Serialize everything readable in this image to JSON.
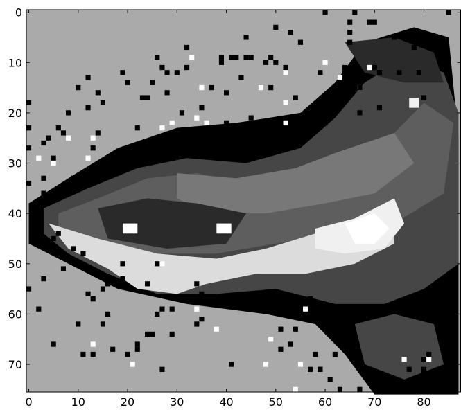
{
  "chart_data": {
    "type": "heatmap",
    "title": "",
    "xlabel": "",
    "ylabel": "",
    "colormap": "gray",
    "levels": [
      "#000000",
      "#2a2a2a",
      "#464646",
      "#5e5e5e",
      "#787878",
      "#aaaaaa",
      "#dcdcdc",
      "#f0f0f0",
      "#ffffff"
    ],
    "background_level": "#aaaaaa",
    "xlim": [
      -0.5,
      87.5
    ],
    "ylim": [
      75.5,
      -0.5
    ],
    "x_ticks": [
      0,
      10,
      20,
      30,
      40,
      50,
      60,
      70,
      80
    ],
    "y_ticks": [
      0,
      10,
      20,
      30,
      40,
      50,
      60,
      70
    ],
    "x_tick_labels": [
      "0",
      "10",
      "20",
      "30",
      "40",
      "50",
      "60",
      "70",
      "80"
    ],
    "y_tick_labels": [
      "0",
      "10",
      "20",
      "30",
      "40",
      "50",
      "60",
      "70"
    ],
    "grid": false,
    "image_columns": 88,
    "image_rows": 76
  }
}
